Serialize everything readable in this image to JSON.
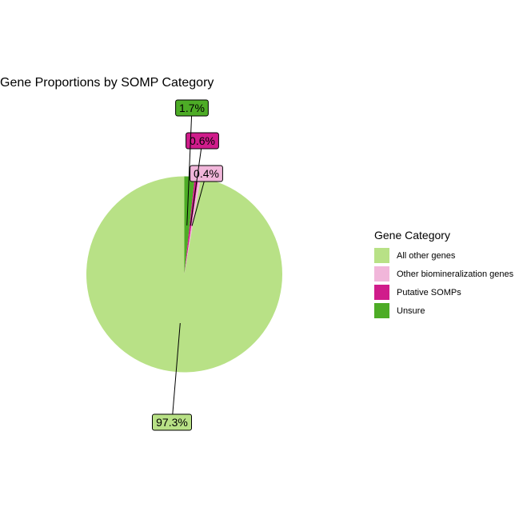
{
  "chart_data": {
    "type": "pie",
    "title": "Gene Proportions by SOMP Category",
    "legend_title": "Gene Category",
    "legend_position": "right",
    "slices": [
      {
        "name": "All other genes",
        "value": 97.3,
        "label": "97.3%",
        "color": "#b8e186"
      },
      {
        "name": "Other biomineralization genes",
        "value": 0.4,
        "label": "0.4%",
        "color": "#f1b6da"
      },
      {
        "name": "Putative SOMPs",
        "value": 0.6,
        "label": "0.6%",
        "color": "#d01c8b"
      },
      {
        "name": "Unsure",
        "value": 1.7,
        "label": "1.7%",
        "color": "#4dac26"
      }
    ]
  }
}
